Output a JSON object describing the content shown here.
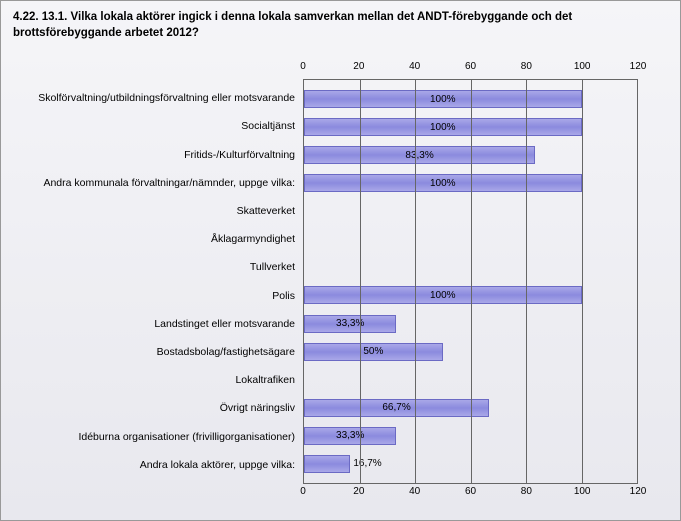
{
  "chart": {
    "type": "bar-horizontal",
    "title": "4.22. 13.1. Vilka lokala aktörer ingick i denna lokala samverkan mellan det ANDT-förebyggande och det brottsförebyggande arbetet 2012?",
    "title_fontsize": 11.5,
    "title_fontweight": "bold",
    "background_gradient": [
      "#f5f5f8",
      "#e8e8ee"
    ],
    "bar_color": "#8b8ade",
    "bar_gradient": [
      "#a9a8e8",
      "#8b8ade",
      "#a9a8e8"
    ],
    "bar_border_color": "#6b6ac4",
    "grid_color": "#666666",
    "text_color": "#000000",
    "label_fontsize": 10.5,
    "value_fontsize": 10,
    "xaxis": {
      "min": 0,
      "max": 120,
      "step": 20,
      "ticks": [
        0,
        20,
        40,
        60,
        80,
        100,
        120
      ],
      "tick_labels": [
        "0",
        "20",
        "40",
        "60",
        "80",
        "100",
        "120"
      ]
    },
    "categories": [
      {
        "label": "Skolförvaltning/utbildningsförvaltning eller motsvarande",
        "value": 100,
        "display": "100%"
      },
      {
        "label": "Socialtjänst",
        "value": 100,
        "display": "100%"
      },
      {
        "label": "Fritids-/Kulturförvaltning",
        "value": 83.3,
        "display": "83,3%"
      },
      {
        "label": "Andra kommunala förvaltningar/nämnder, uppge vilka:",
        "value": 100,
        "display": "100%"
      },
      {
        "label": "Skatteverket",
        "value": 0,
        "display": ""
      },
      {
        "label": "Åklagarmyndighet",
        "value": 0,
        "display": ""
      },
      {
        "label": "Tullverket",
        "value": 0,
        "display": ""
      },
      {
        "label": "Polis",
        "value": 100,
        "display": "100%"
      },
      {
        "label": "Landstinget eller motsvarande",
        "value": 33.3,
        "display": "33,3%"
      },
      {
        "label": "Bostadsbolag/fastighetsägare",
        "value": 50,
        "display": "50%"
      },
      {
        "label": "Lokaltrafiken",
        "value": 0,
        "display": ""
      },
      {
        "label": "Övrigt näringsliv",
        "value": 66.7,
        "display": "66,7%"
      },
      {
        "label": "Idéburna organisationer (frivilligorganisationer)",
        "value": 33.3,
        "display": "33,3%"
      },
      {
        "label": "Andra lokala aktörer, uppge vilka:",
        "value": 16.7,
        "display": "16,7%"
      }
    ]
  }
}
